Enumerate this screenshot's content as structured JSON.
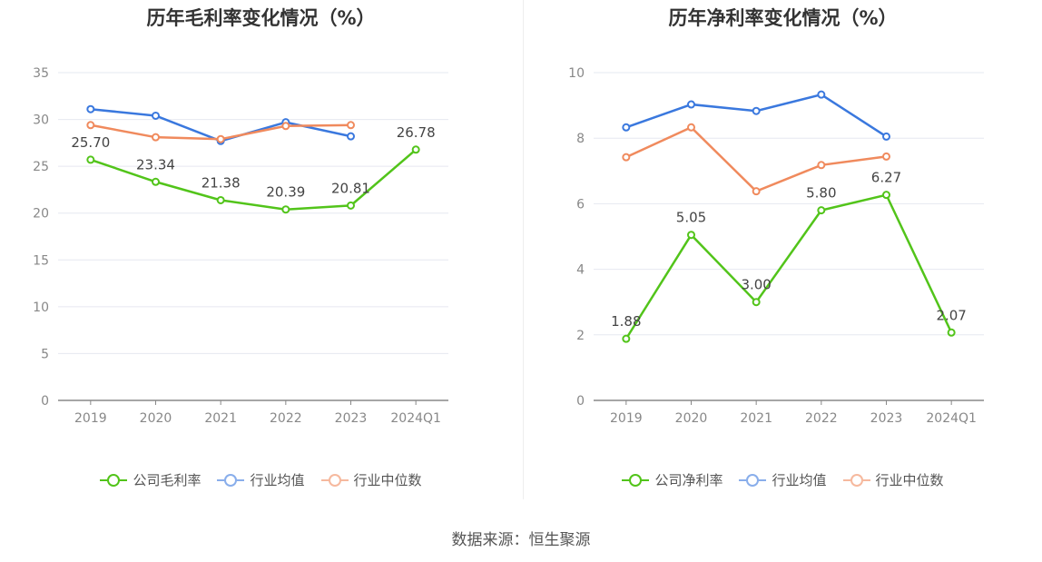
{
  "source": "数据来源：恒生聚源",
  "chart_data": [
    {
      "type": "line",
      "title": "历年毛利率变化情况（%）",
      "categories": [
        "2019",
        "2020",
        "2021",
        "2022",
        "2023",
        "2024Q1"
      ],
      "ylim": [
        0,
        35
      ],
      "yticks": [
        0,
        5,
        10,
        15,
        20,
        25,
        30,
        35
      ],
      "grid": true,
      "legend_position": "bottom",
      "series": [
        {
          "name": "公司毛利率",
          "color": "#52c41a",
          "labels": true,
          "values": [
            25.7,
            23.34,
            21.38,
            20.39,
            20.81,
            26.78
          ],
          "label_text": [
            "25.70",
            "23.34",
            "21.38",
            "20.39",
            "20.81",
            "26.78"
          ]
        },
        {
          "name": "行业均值",
          "color": "#3a78de",
          "values": [
            31.1,
            30.4,
            27.7,
            29.7,
            28.2,
            null
          ]
        },
        {
          "name": "行业中位数",
          "color": "#f08a5d",
          "values": [
            29.4,
            28.1,
            27.9,
            29.3,
            29.4,
            null
          ]
        }
      ]
    },
    {
      "type": "line",
      "title": "历年净利率变化情况（%）",
      "categories": [
        "2019",
        "2020",
        "2021",
        "2022",
        "2023",
        "2024Q1"
      ],
      "ylim": [
        0,
        10
      ],
      "yticks": [
        0,
        2,
        4,
        6,
        8,
        10
      ],
      "grid": true,
      "legend_position": "bottom",
      "series": [
        {
          "name": "公司净利率",
          "color": "#52c41a",
          "labels": true,
          "values": [
            1.88,
            5.05,
            3.0,
            5.8,
            6.27,
            2.07
          ],
          "label_text": [
            "1.88",
            "5.05",
            "3.00",
            "5.80",
            "6.27",
            "2.07"
          ]
        },
        {
          "name": "行业均值",
          "color": "#3a78de",
          "values": [
            8.33,
            9.03,
            8.83,
            9.33,
            8.05,
            null
          ]
        },
        {
          "name": "行业中位数",
          "color": "#f08a5d",
          "values": [
            7.42,
            8.33,
            6.38,
            7.18,
            7.44,
            null
          ]
        }
      ]
    }
  ]
}
